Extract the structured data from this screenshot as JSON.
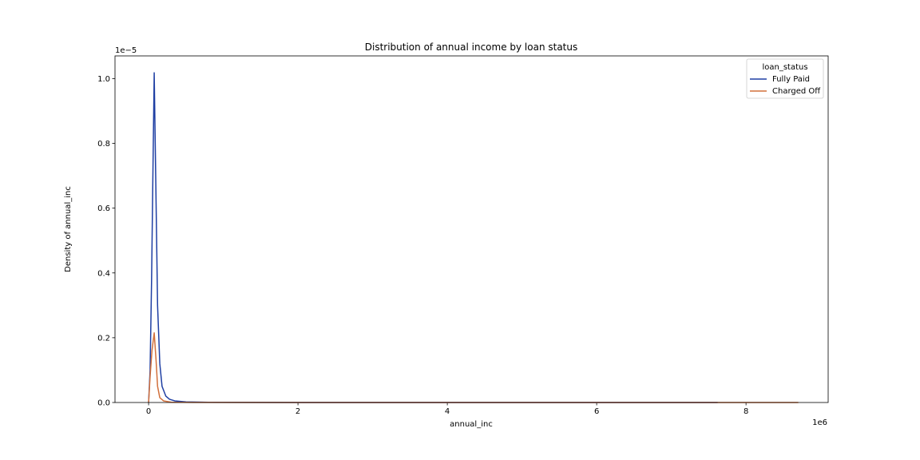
{
  "chart_data": {
    "type": "line",
    "title": "Distribution of annual income by loan status",
    "xlabel": "annual_inc",
    "ylabel": "Density of annual_inc",
    "x_offset_text": "1e6",
    "y_offset_text": "1e−5",
    "xlim": [
      -450000,
      9100000
    ],
    "ylim": [
      0,
      1.07e-05
    ],
    "x_ticks": [
      0,
      2000000,
      4000000,
      6000000,
      8000000
    ],
    "x_tick_labels": [
      "0",
      "2",
      "4",
      "6",
      "8"
    ],
    "y_ticks": [
      0,
      2e-06,
      4e-06,
      6e-06,
      8e-06,
      1e-05
    ],
    "y_tick_labels": [
      "0.0",
      "0.2",
      "0.4",
      "0.6",
      "0.8",
      "1.0"
    ],
    "grid": false,
    "legend": {
      "title": "loan_status",
      "position": "top-right"
    },
    "series": [
      {
        "name": "Fully Paid",
        "color": "#1f3fa3",
        "points": [
          [
            0,
            0
          ],
          [
            20000,
            1e-06
          ],
          [
            40000,
            3.8e-06
          ],
          [
            60000,
            7.5e-06
          ],
          [
            75000,
            1.018e-05
          ],
          [
            95000,
            7e-06
          ],
          [
            120000,
            3e-06
          ],
          [
            150000,
            1.2e-06
          ],
          [
            180000,
            5e-07
          ],
          [
            230000,
            2e-07
          ],
          [
            280000,
            1e-07
          ],
          [
            350000,
            5e-08
          ],
          [
            500000,
            2e-08
          ],
          [
            800000,
            5e-09
          ],
          [
            2000000,
            1e-09
          ],
          [
            5000000,
            5e-10
          ],
          [
            7620000,
            0
          ]
        ]
      },
      {
        "name": "Charged Off",
        "color": "#d2703c",
        "points": [
          [
            0,
            0
          ],
          [
            20000,
            8e-07
          ],
          [
            45000,
            1.6e-06
          ],
          [
            75000,
            2.15e-06
          ],
          [
            100000,
            1.3e-06
          ],
          [
            120000,
            5e-07
          ],
          [
            150000,
            1.5e-07
          ],
          [
            200000,
            5e-08
          ],
          [
            300000,
            1e-08
          ],
          [
            600000,
            2e-09
          ],
          [
            3000000,
            5e-10
          ],
          [
            7620000,
            5e-10
          ],
          [
            8700000,
            0
          ]
        ]
      }
    ]
  }
}
